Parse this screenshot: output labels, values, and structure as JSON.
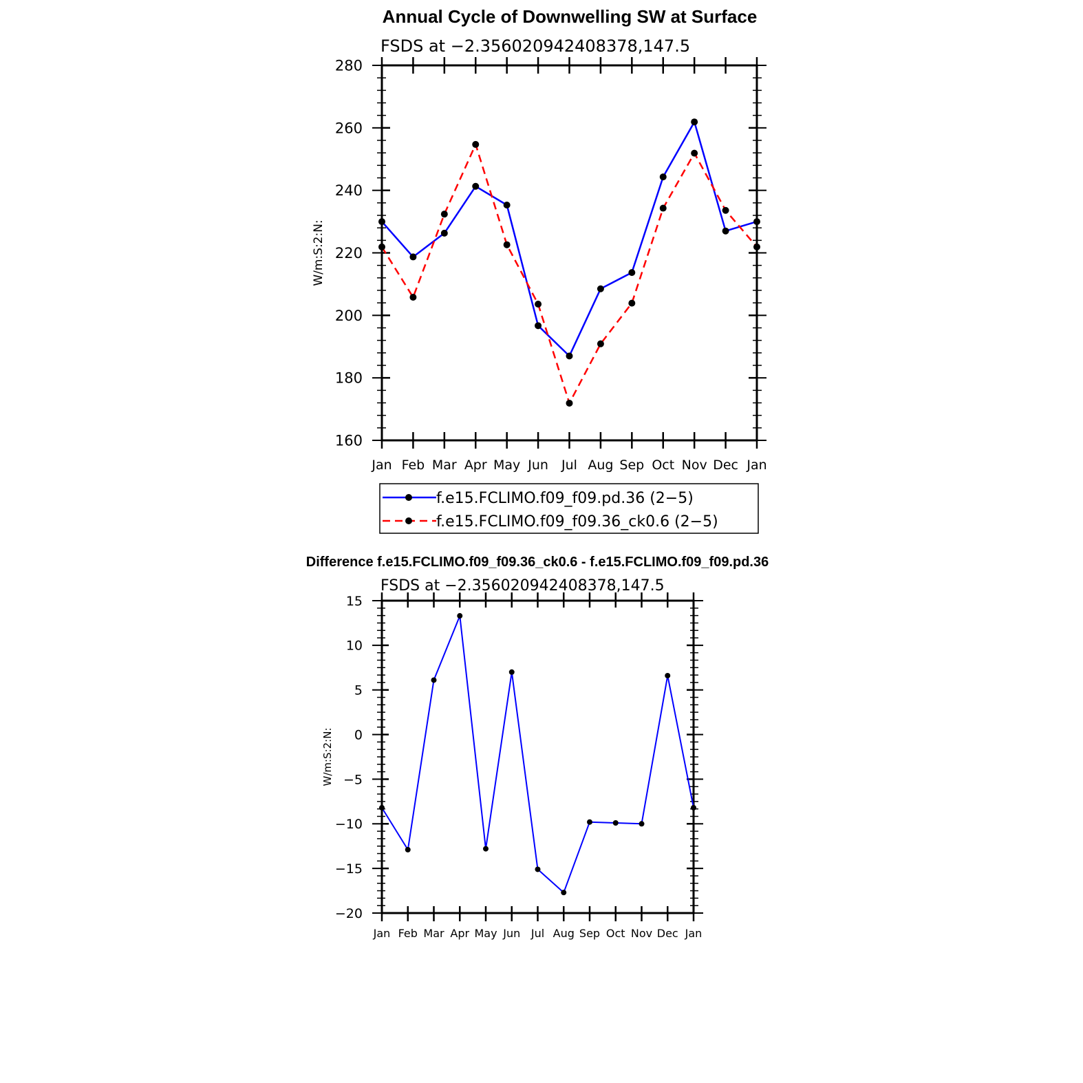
{
  "chart_data": [
    {
      "type": "line",
      "title": "Annual Cycle of Downwelling SW at Surface",
      "subtitle": "FSDS at −2.356020942408378,147.5",
      "xlabel": "",
      "ylabel": "W/m:S:2:N:",
      "categories": [
        "Jan",
        "Feb",
        "Mar",
        "Apr",
        "May",
        "Jun",
        "Jul",
        "Aug",
        "Sep",
        "Oct",
        "Nov",
        "Dec",
        "Jan"
      ],
      "ylim": [
        160,
        280
      ],
      "yticks": [
        160,
        180,
        200,
        220,
        240,
        260,
        280
      ],
      "ytick_labels": [
        "160",
        "180",
        "200",
        "220",
        "240",
        "260",
        "280"
      ],
      "series": [
        {
          "name": "f.e15.FCLIMO.f09_f09.pd.36 (2−5)",
          "color": "#0000ff",
          "style": "solid",
          "values": [
            230,
            218.7,
            226.3,
            241.3,
            235.3,
            196.7,
            187,
            208.5,
            213.7,
            244.3,
            261.9,
            227,
            230
          ]
        },
        {
          "name": "f.e15.FCLIMO.f09_f09.36_ck0.6 (2−5)",
          "color": "#ff0000",
          "style": "dashed",
          "values": [
            221.9,
            205.8,
            232.4,
            254.7,
            222.6,
            203.6,
            171.9,
            190.9,
            203.9,
            234.3,
            251.9,
            233.6,
            221.9
          ]
        }
      ],
      "legend_position": "bottom"
    },
    {
      "type": "line",
      "title": "Difference f.e15.FCLIMO.f09_f09.36_ck0.6 - f.e15.FCLIMO.f09_f09.pd.36",
      "subtitle": "FSDS at −2.356020942408378,147.5",
      "xlabel": "",
      "ylabel": "W/m:S:2:N:",
      "categories": [
        "Jan",
        "Feb",
        "Mar",
        "Apr",
        "May",
        "Jun",
        "Jul",
        "Aug",
        "Sep",
        "Oct",
        "Nov",
        "Dec",
        "Jan"
      ],
      "ylim": [
        -20,
        15
      ],
      "yticks": [
        -20,
        -15,
        -10,
        -5,
        0,
        5,
        10,
        15
      ],
      "ytick_labels": [
        "−20",
        "−15",
        "−10",
        "−5",
        "0",
        "5",
        "10",
        "15"
      ],
      "series": [
        {
          "name": "Difference",
          "color": "#0000ff",
          "style": "solid",
          "values": [
            -8.2,
            -12.9,
            6.1,
            13.3,
            -12.8,
            7.0,
            -15.1,
            -17.7,
            -9.8,
            -9.9,
            -10.0,
            6.6,
            -8.2
          ]
        }
      ]
    }
  ]
}
